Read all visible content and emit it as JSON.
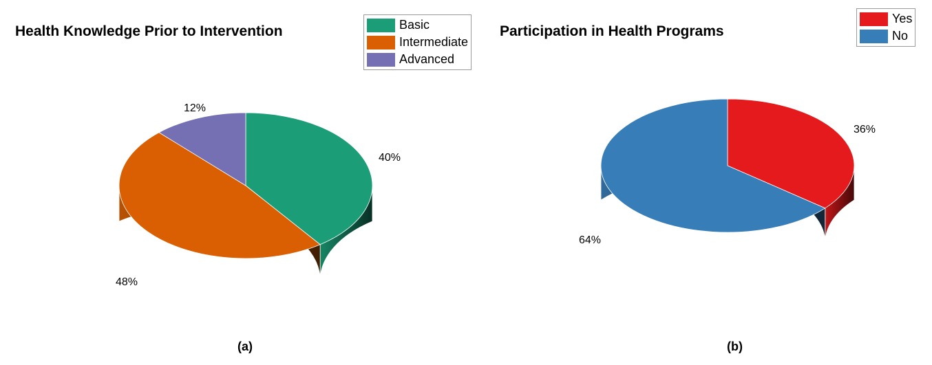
{
  "chart_data": [
    {
      "type": "pie",
      "title": "Health Knowledge Prior to Intervention",
      "caption": "(a)",
      "legend_position": "top-right",
      "series": [
        {
          "name": "Basic",
          "value": 40,
          "label": "40%",
          "color": "#1b9e77"
        },
        {
          "name": "Intermediate",
          "value": 48,
          "label": "48%",
          "color": "#d95f02"
        },
        {
          "name": "Advanced",
          "value": 12,
          "label": "12%",
          "color": "#7570b3"
        }
      ]
    },
    {
      "type": "pie",
      "title": "Participation in Health Programs",
      "caption": "(b)",
      "legend_position": "top-right",
      "series": [
        {
          "name": "Yes",
          "value": 36,
          "label": "36%",
          "color": "#e41a1c"
        },
        {
          "name": "No",
          "value": 64,
          "label": "64%",
          "color": "#377eb8"
        }
      ]
    }
  ]
}
